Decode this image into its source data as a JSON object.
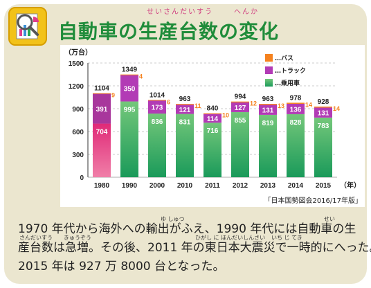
{
  "title": "自動車の生産台数の変化",
  "ruby": {
    "title_part1": "せいさんだいすう",
    "title_part2": "へんか"
  },
  "body": {
    "lines": [
      "1970 年代から海外への輸出がふえ、1990 年代には自動車の生",
      "産台数は急増。その後、2011 年の東日本大震災で一時的にへった。",
      "2015 年は 927 万 8000 台となった。"
    ]
  },
  "furigana": {
    "yushutsu": "ゆ しゅつ",
    "sei": "せい",
    "sandaisuu": "さんだいすう",
    "kyuuzou": "きゅうぞう",
    "shinsai": "ひがし に ほんだいしんさい",
    "ichijiteki": "いち じ てき"
  },
  "colors": {
    "bus": "#f5821f",
    "truck": "#b23bb5",
    "passenger_top": "#74c77a",
    "passenger_bottom": "#1a9a5a",
    "truck_1980": "#a8379c",
    "passenger_1980_top": "#e02a78",
    "passenger_1980_bottom": "#f07fa8",
    "total_label": "#222222",
    "bus_label": "#f5821f",
    "grid": "#bdbdbd"
  },
  "chart_data": {
    "type": "bar",
    "stacked": true,
    "unit_label": "（万台）",
    "x_unit_label": "（年）",
    "source": "「日本国勢図会2016/17年版」",
    "categories": [
      "1980",
      "1990",
      "2000",
      "2010",
      "2011",
      "2012",
      "2013",
      "2014",
      "2015"
    ],
    "series": [
      {
        "name": "…乗用車",
        "values": [
          704,
          995,
          836,
          831,
          716,
          855,
          819,
          828,
          783
        ]
      },
      {
        "name": "…トラック",
        "values": [
          391,
          350,
          173,
          121,
          114,
          127,
          131,
          136,
          131
        ]
      },
      {
        "name": "…バス",
        "values": [
          9,
          4,
          6,
          11,
          10,
          12,
          13,
          14,
          14
        ]
      }
    ],
    "totals": [
      1104,
      1349,
      1014,
      963,
      840,
      994,
      963,
      978,
      928
    ],
    "ylim": [
      0,
      1500
    ],
    "yticks": [
      0,
      300,
      600,
      900,
      1200,
      1500
    ],
    "grid": true,
    "legend_position": "top-right"
  }
}
